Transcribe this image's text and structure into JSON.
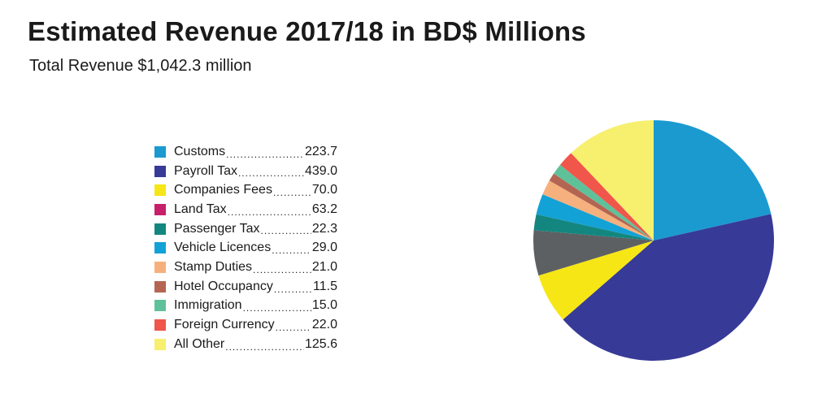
{
  "chart_data": {
    "type": "pie",
    "title": "Estimated Revenue 2017/18 in BD$ Millions",
    "subtitle": "Total Revenue $1,042.3 million",
    "legend_position": "left",
    "start_angle_deg": 0,
    "direction": "clockwise",
    "slices": [
      {
        "label": "Customs",
        "value_text": "223.7",
        "value": 223.7,
        "color": "#1b9ad0"
      },
      {
        "label": "Payroll Tax",
        "value_text": "439.0",
        "value": 439.0,
        "color": "#373a96"
      },
      {
        "label": "Companies Fees",
        "value_text": "70.0",
        "value": 70.0,
        "color": "#f6e615"
      },
      {
        "label": "Land Tax",
        "value_text": "63.2",
        "value": 63.2,
        "color": "#5d6063"
      },
      {
        "label": "Passenger Tax",
        "value_text": "22.3",
        "value": 22.3,
        "color": "#13877f"
      },
      {
        "label": "Vehicle Licences",
        "value_text": "29.0",
        "value": 29.0,
        "color": "#13a2d6"
      },
      {
        "label": "Stamp Duties",
        "value_text": "21.0",
        "value": 21.0,
        "color": "#f6b07d"
      },
      {
        "label": "Hotel Occupancy",
        "value_text": "11.5",
        "value": 11.5,
        "color": "#b46552"
      },
      {
        "label": "Immigration",
        "value_text": "15.0",
        "value": 15.0,
        "color": "#5fc19a"
      },
      {
        "label": "Foreign Currency",
        "value_text": "22.0",
        "value": 22.0,
        "color": "#f0564a"
      },
      {
        "label": "All Other",
        "value_text": "125.6",
        "value": 125.6,
        "color": "#f7ef6e"
      }
    ],
    "legend_swatch_colors": [
      "#1b9ad0",
      "#373a96",
      "#f6e615",
      "#c6206a",
      "#13877f",
      "#13a2d6",
      "#f6b07d",
      "#b46552",
      "#5fc19a",
      "#f0564a",
      "#f7ef6e"
    ]
  }
}
